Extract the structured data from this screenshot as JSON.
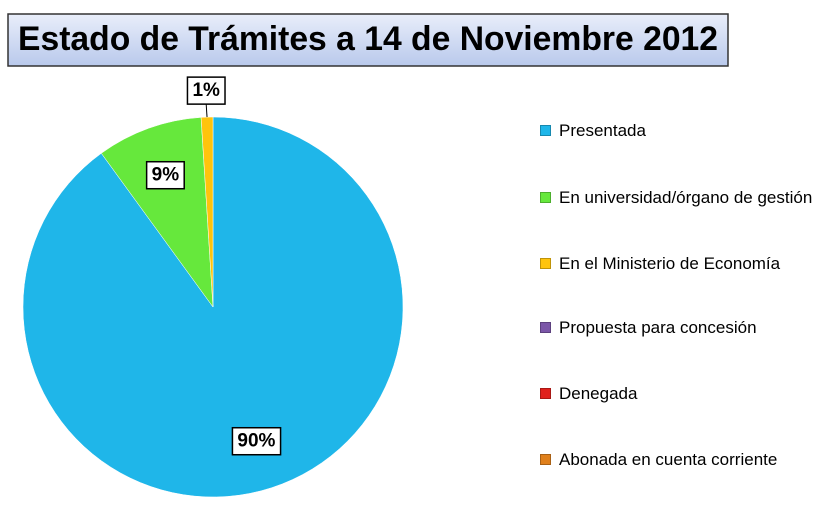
{
  "chart_data": {
    "type": "pie",
    "title": "Estado de Trámites a 14 de Noviembre 2012",
    "categories": [
      "Presentada",
      "En universidad/órgano de gestión",
      "En el Ministerio de Economía",
      "Propuesta para concesión",
      "Denegada",
      "Abonada en cuenta corriente"
    ],
    "values": [
      90,
      9,
      1,
      0,
      0,
      0
    ],
    "value_labels": [
      "90%",
      "9%",
      "1%",
      null,
      null,
      null
    ],
    "colors": [
      "#1fb6e9",
      "#66e83c",
      "#ffc40c",
      "#7b56a8",
      "#e0201c",
      "#e0801c"
    ],
    "legend": "right"
  }
}
